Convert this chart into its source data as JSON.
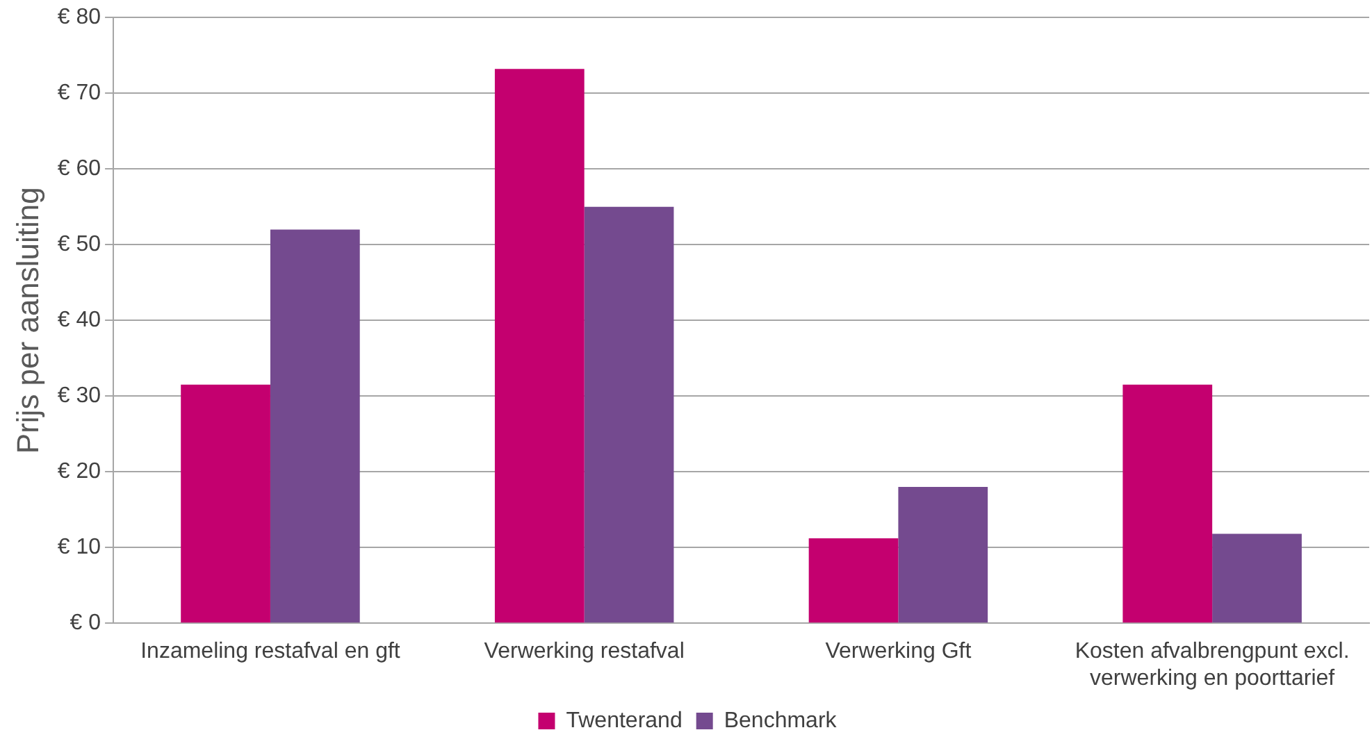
{
  "chart_data": {
    "type": "bar",
    "ylabel": "Prijs per aansluiting",
    "categories": [
      "Inzameling restafval en gft",
      "Verwerking restafval",
      "Verwerking Gft",
      "Kosten afvalbrengpunt excl. verwerking en poorttarief"
    ],
    "series": [
      {
        "name": "Twenterand",
        "color": "#c4006f",
        "values": [
          31.5,
          73.2,
          11.2,
          31.5
        ]
      },
      {
        "name": "Benchmark",
        "color": "#744a8f",
        "values": [
          52,
          55,
          18,
          11.8
        ]
      }
    ],
    "ylim": [
      0,
      80
    ],
    "yticks": [
      {
        "value": 0,
        "label": "€ 0"
      },
      {
        "value": 10,
        "label": "€ 10"
      },
      {
        "value": 20,
        "label": "€ 20"
      },
      {
        "value": 30,
        "label": "€ 30"
      },
      {
        "value": 40,
        "label": "€ 40"
      },
      {
        "value": 50,
        "label": "€ 50"
      },
      {
        "value": 60,
        "label": "€ 60"
      },
      {
        "value": 70,
        "label": "€ 70"
      },
      {
        "value": 80,
        "label": "€ 80"
      }
    ],
    "grid": "y",
    "legend": "bottom"
  }
}
